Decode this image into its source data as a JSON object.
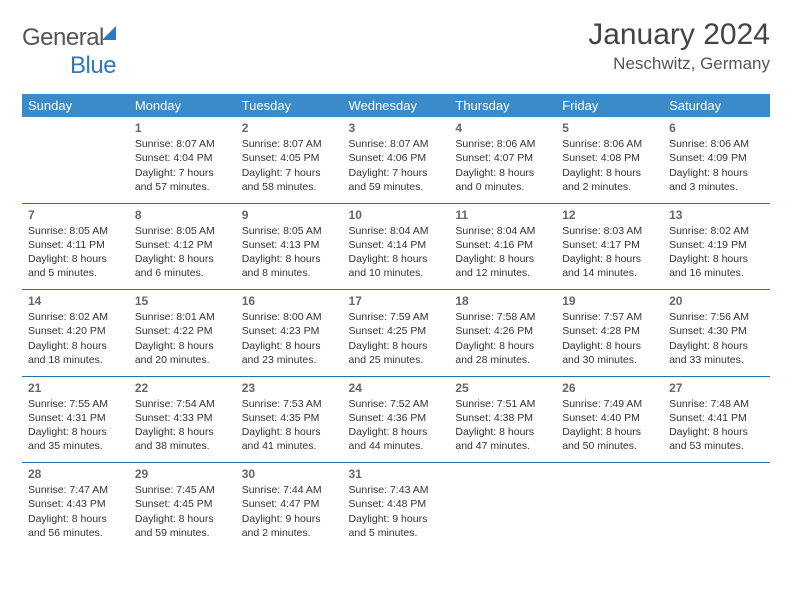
{
  "logo": {
    "word1": "General",
    "word2": "Blue"
  },
  "title": "January 2024",
  "location": "Neschwitz, Germany",
  "colors": {
    "header_bg": "#3b8bc9",
    "header_fg": "#ffffff",
    "rule": "#2b6fa3",
    "text": "#333333",
    "logo_accent": "#2b7abf"
  },
  "day_headers": [
    "Sunday",
    "Monday",
    "Tuesday",
    "Wednesday",
    "Thursday",
    "Friday",
    "Saturday"
  ],
  "weeks": [
    [
      null,
      {
        "n": "1",
        "sr": "Sunrise: 8:07 AM",
        "ss": "Sunset: 4:04 PM",
        "dl": "Daylight: 7 hours and 57 minutes."
      },
      {
        "n": "2",
        "sr": "Sunrise: 8:07 AM",
        "ss": "Sunset: 4:05 PM",
        "dl": "Daylight: 7 hours and 58 minutes."
      },
      {
        "n": "3",
        "sr": "Sunrise: 8:07 AM",
        "ss": "Sunset: 4:06 PM",
        "dl": "Daylight: 7 hours and 59 minutes."
      },
      {
        "n": "4",
        "sr": "Sunrise: 8:06 AM",
        "ss": "Sunset: 4:07 PM",
        "dl": "Daylight: 8 hours and 0 minutes."
      },
      {
        "n": "5",
        "sr": "Sunrise: 8:06 AM",
        "ss": "Sunset: 4:08 PM",
        "dl": "Daylight: 8 hours and 2 minutes."
      },
      {
        "n": "6",
        "sr": "Sunrise: 8:06 AM",
        "ss": "Sunset: 4:09 PM",
        "dl": "Daylight: 8 hours and 3 minutes."
      }
    ],
    [
      {
        "n": "7",
        "sr": "Sunrise: 8:05 AM",
        "ss": "Sunset: 4:11 PM",
        "dl": "Daylight: 8 hours and 5 minutes."
      },
      {
        "n": "8",
        "sr": "Sunrise: 8:05 AM",
        "ss": "Sunset: 4:12 PM",
        "dl": "Daylight: 8 hours and 6 minutes."
      },
      {
        "n": "9",
        "sr": "Sunrise: 8:05 AM",
        "ss": "Sunset: 4:13 PM",
        "dl": "Daylight: 8 hours and 8 minutes."
      },
      {
        "n": "10",
        "sr": "Sunrise: 8:04 AM",
        "ss": "Sunset: 4:14 PM",
        "dl": "Daylight: 8 hours and 10 minutes."
      },
      {
        "n": "11",
        "sr": "Sunrise: 8:04 AM",
        "ss": "Sunset: 4:16 PM",
        "dl": "Daylight: 8 hours and 12 minutes."
      },
      {
        "n": "12",
        "sr": "Sunrise: 8:03 AM",
        "ss": "Sunset: 4:17 PM",
        "dl": "Daylight: 8 hours and 14 minutes."
      },
      {
        "n": "13",
        "sr": "Sunrise: 8:02 AM",
        "ss": "Sunset: 4:19 PM",
        "dl": "Daylight: 8 hours and 16 minutes."
      }
    ],
    [
      {
        "n": "14",
        "sr": "Sunrise: 8:02 AM",
        "ss": "Sunset: 4:20 PM",
        "dl": "Daylight: 8 hours and 18 minutes."
      },
      {
        "n": "15",
        "sr": "Sunrise: 8:01 AM",
        "ss": "Sunset: 4:22 PM",
        "dl": "Daylight: 8 hours and 20 minutes."
      },
      {
        "n": "16",
        "sr": "Sunrise: 8:00 AM",
        "ss": "Sunset: 4:23 PM",
        "dl": "Daylight: 8 hours and 23 minutes."
      },
      {
        "n": "17",
        "sr": "Sunrise: 7:59 AM",
        "ss": "Sunset: 4:25 PM",
        "dl": "Daylight: 8 hours and 25 minutes."
      },
      {
        "n": "18",
        "sr": "Sunrise: 7:58 AM",
        "ss": "Sunset: 4:26 PM",
        "dl": "Daylight: 8 hours and 28 minutes."
      },
      {
        "n": "19",
        "sr": "Sunrise: 7:57 AM",
        "ss": "Sunset: 4:28 PM",
        "dl": "Daylight: 8 hours and 30 minutes."
      },
      {
        "n": "20",
        "sr": "Sunrise: 7:56 AM",
        "ss": "Sunset: 4:30 PM",
        "dl": "Daylight: 8 hours and 33 minutes."
      }
    ],
    [
      {
        "n": "21",
        "sr": "Sunrise: 7:55 AM",
        "ss": "Sunset: 4:31 PM",
        "dl": "Daylight: 8 hours and 35 minutes."
      },
      {
        "n": "22",
        "sr": "Sunrise: 7:54 AM",
        "ss": "Sunset: 4:33 PM",
        "dl": "Daylight: 8 hours and 38 minutes."
      },
      {
        "n": "23",
        "sr": "Sunrise: 7:53 AM",
        "ss": "Sunset: 4:35 PM",
        "dl": "Daylight: 8 hours and 41 minutes."
      },
      {
        "n": "24",
        "sr": "Sunrise: 7:52 AM",
        "ss": "Sunset: 4:36 PM",
        "dl": "Daylight: 8 hours and 44 minutes."
      },
      {
        "n": "25",
        "sr": "Sunrise: 7:51 AM",
        "ss": "Sunset: 4:38 PM",
        "dl": "Daylight: 8 hours and 47 minutes."
      },
      {
        "n": "26",
        "sr": "Sunrise: 7:49 AM",
        "ss": "Sunset: 4:40 PM",
        "dl": "Daylight: 8 hours and 50 minutes."
      },
      {
        "n": "27",
        "sr": "Sunrise: 7:48 AM",
        "ss": "Sunset: 4:41 PM",
        "dl": "Daylight: 8 hours and 53 minutes."
      }
    ],
    [
      {
        "n": "28",
        "sr": "Sunrise: 7:47 AM",
        "ss": "Sunset: 4:43 PM",
        "dl": "Daylight: 8 hours and 56 minutes."
      },
      {
        "n": "29",
        "sr": "Sunrise: 7:45 AM",
        "ss": "Sunset: 4:45 PM",
        "dl": "Daylight: 8 hours and 59 minutes."
      },
      {
        "n": "30",
        "sr": "Sunrise: 7:44 AM",
        "ss": "Sunset: 4:47 PM",
        "dl": "Daylight: 9 hours and 2 minutes."
      },
      {
        "n": "31",
        "sr": "Sunrise: 7:43 AM",
        "ss": "Sunset: 4:48 PM",
        "dl": "Daylight: 9 hours and 5 minutes."
      },
      null,
      null,
      null
    ]
  ]
}
